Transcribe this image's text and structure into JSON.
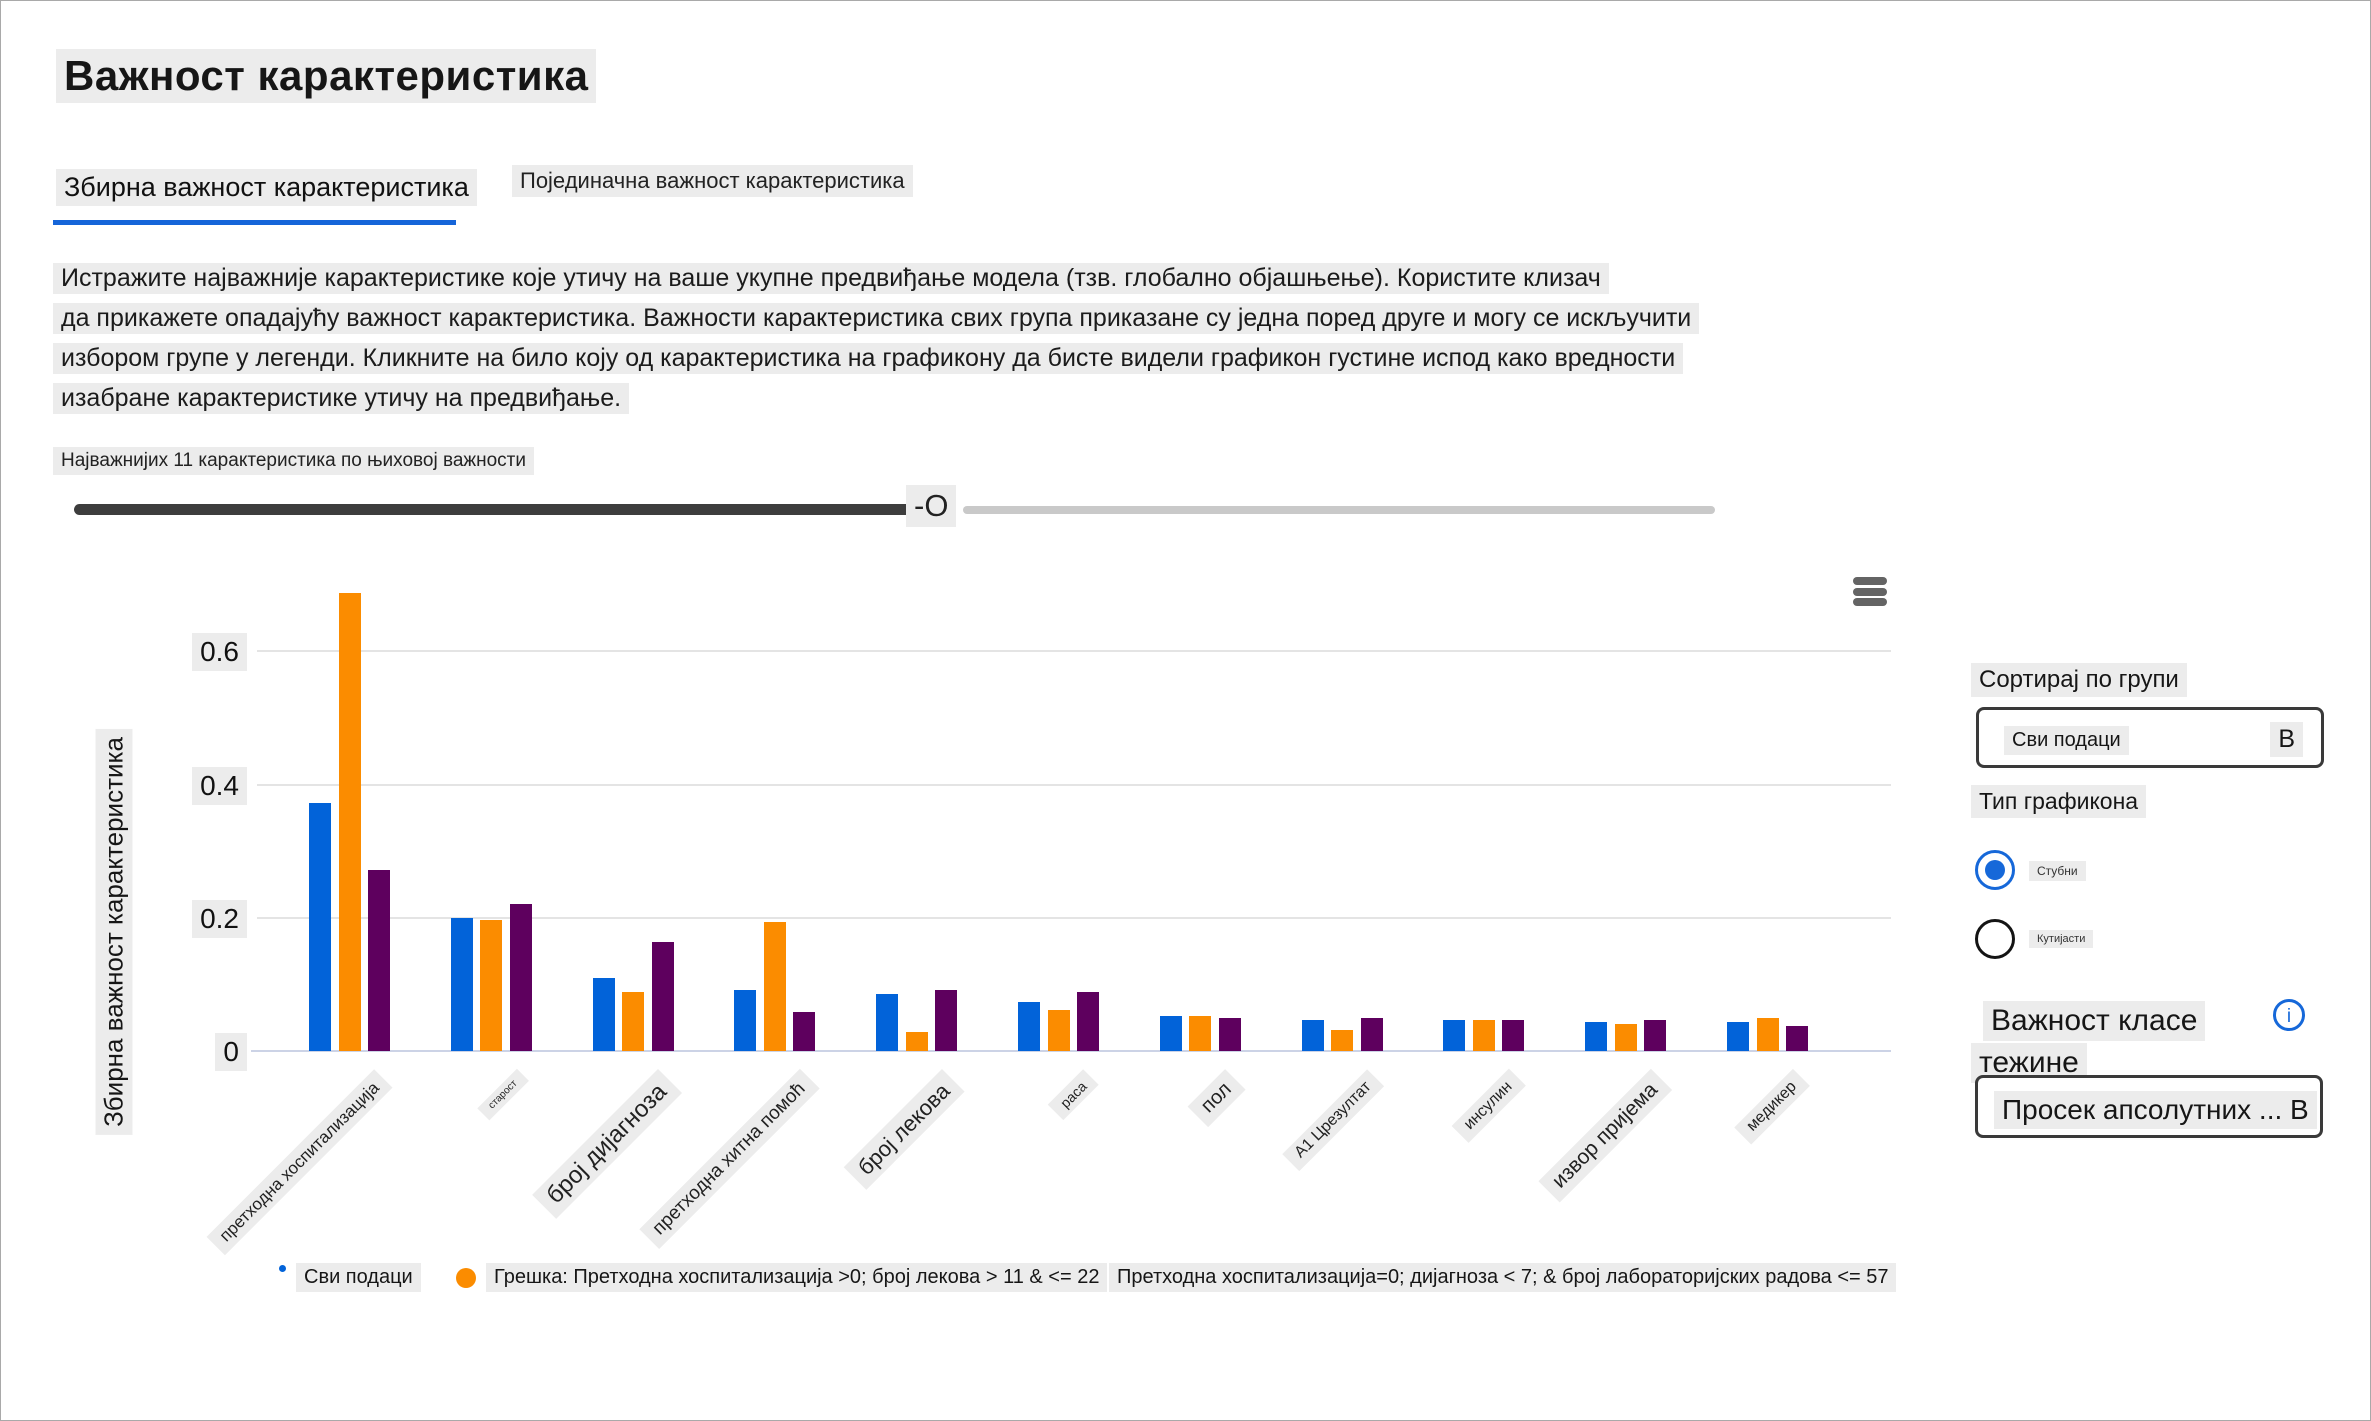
{
  "page": {
    "title": "Важност карактеристика",
    "tabs": [
      {
        "label": "Збирна важност карактеристика",
        "active": true
      },
      {
        "label": "Појединачна важност карактеристика",
        "active": false
      }
    ],
    "description_lines": [
      "Истражите најважније карактеристике које утичу на ваше укупне предвиђање модела (тзв. глобално објашњење). Користите клизач",
      "да прикажете опадајућу важност карактеристика. Важности карактеристика свих група приказане су једна поред друге и могу се искључити",
      "избором групе у легенди. Кликните на било коју од карактеристика на графикону да бисте видели графикон густине испод како вредности",
      "изабране карактеристике утичу на предвиђање."
    ],
    "slider": {
      "label": "Најважнијих 11 карактеристика по њиховој важности",
      "thumb": "-O"
    }
  },
  "chart_data": {
    "type": "bar",
    "title": "",
    "xlabel": "",
    "ylabel": "Збирна важност карактеристика",
    "yticks": [
      0,
      0.2,
      0.4,
      0.6
    ],
    "ylim": [
      0,
      0.72
    ],
    "grid": true,
    "legend_position": "bottom",
    "categories": [
      "претходна хоспитализација",
      "старост",
      "број дијагноза",
      "претходна хитна помоћ",
      "број лекова",
      "раса",
      "пол",
      "А1 Црезултат",
      "инсулин",
      "извор пријема",
      "медикер"
    ],
    "series": [
      {
        "name": "Сви подаци",
        "color": "#0263d9",
        "values": [
          0.372,
          0.2,
          0.11,
          0.092,
          0.085,
          0.074,
          0.053,
          0.046,
          0.046,
          0.044,
          0.044
        ]
      },
      {
        "name": "Грешка: Претходна хоспитализација >0; број лекова > 11 & <= 22",
        "color": "#fb8c00",
        "values": [
          0.688,
          0.196,
          0.089,
          0.194,
          0.029,
          0.062,
          0.052,
          0.031,
          0.047,
          0.041,
          0.05
        ]
      },
      {
        "name": "Претходна хоспитализација=0; дијагноза < 7; & број лабораторијских радова <= 57",
        "color": "#5e005e",
        "values": [
          0.272,
          0.22,
          0.163,
          0.058,
          0.092,
          0.088,
          0.049,
          0.05,
          0.047,
          0.047,
          0.038
        ]
      }
    ]
  },
  "sidebar": {
    "sort_heading": "Сортирај по групи",
    "sort_value": "Сви подаци",
    "sort_caret": "В",
    "chart_type_heading": "Тип графикона",
    "chart_types": [
      {
        "label": "Стубни",
        "selected": true
      },
      {
        "label": "Кутијасти",
        "selected": false
      }
    ],
    "class_weight_heading_line1": "Важност класе",
    "class_weight_heading_line2": "тежине",
    "info_glyph": "i",
    "class_weight_value": "Просек апсолутних ... В"
  },
  "colors": {
    "accent_blue": "#1565d9",
    "bar_blue": "#0263d9",
    "bar_orange": "#fb8c00",
    "bar_purple": "#5e005e"
  }
}
